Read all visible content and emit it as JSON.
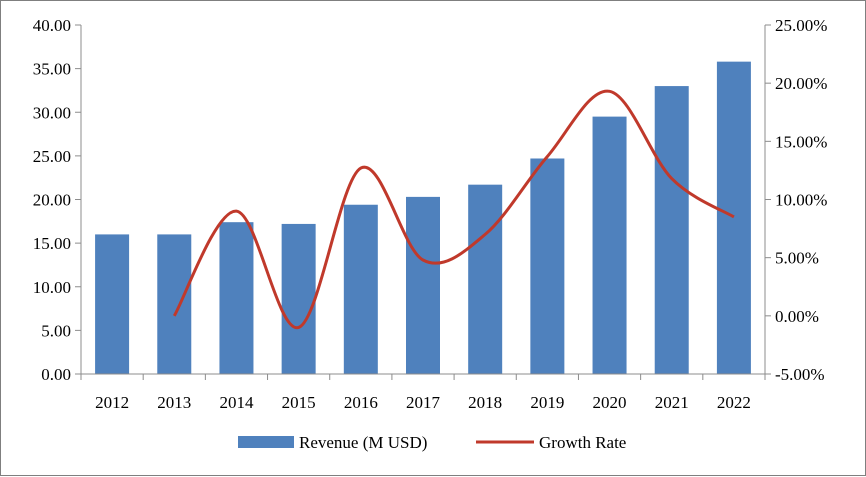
{
  "chart_data": {
    "type": "bar",
    "categories": [
      "2012",
      "2013",
      "2014",
      "2015",
      "2016",
      "2017",
      "2018",
      "2019",
      "2020",
      "2021",
      "2022"
    ],
    "series": [
      {
        "name": "Revenue (M USD)",
        "type": "bar",
        "axis": "left",
        "color": "#4F81BD",
        "values": [
          16.0,
          16.0,
          17.4,
          17.2,
          19.4,
          20.3,
          21.7,
          24.7,
          29.5,
          33.0,
          35.8
        ]
      },
      {
        "name": "Growth Rate",
        "type": "line",
        "axis": "right",
        "color": "#C0392B",
        "values": [
          null,
          0.0,
          9.0,
          -1.0,
          12.7,
          4.8,
          7.0,
          13.7,
          19.3,
          11.8,
          8.5
        ]
      }
    ],
    "y_left": {
      "ylim": [
        0,
        40
      ],
      "ticks": [
        0,
        5,
        10,
        15,
        20,
        25,
        30,
        35,
        40
      ],
      "tick_labels": [
        "0.00",
        "5.00",
        "10.00",
        "15.00",
        "20.00",
        "25.00",
        "30.00",
        "35.00",
        "40.00"
      ]
    },
    "y_right": {
      "ylim": [
        -5,
        25
      ],
      "ticks": [
        -5,
        0,
        5,
        10,
        15,
        20,
        25
      ],
      "tick_labels": [
        "-5.00%",
        "0.00%",
        "5.00%",
        "10.00%",
        "15.00%",
        "20.00%",
        "25.00%"
      ]
    },
    "title": "",
    "xlabel": "",
    "ylabel": "",
    "grid": false,
    "legend_position": "bottom"
  }
}
